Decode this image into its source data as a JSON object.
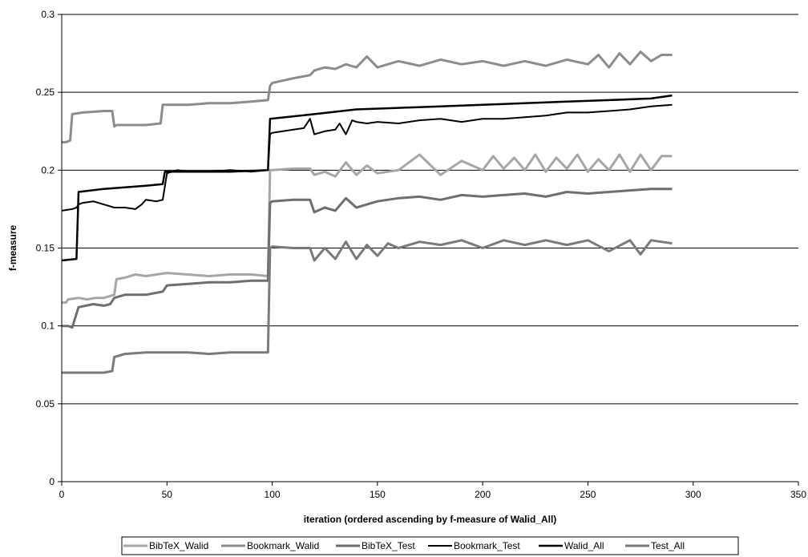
{
  "chart_data": {
    "type": "line",
    "title": "",
    "xlabel": "iteration (ordered ascending by f-measure of Walid_All)",
    "ylabel": "f-measure",
    "xlim": [
      0,
      350
    ],
    "ylim": [
      0,
      0.3
    ],
    "x_ticks": [
      "0",
      "50",
      "100",
      "150",
      "200",
      "250",
      "300",
      "350"
    ],
    "y_ticks": [
      "0",
      "0.05",
      "0.1",
      "0.15",
      "0.2",
      "0.25",
      "0.3"
    ],
    "grid": "horizontal",
    "legend_position": "bottom",
    "series": [
      {
        "name": "BibTeX_Walid",
        "color": "#a6a6a6",
        "width": 3,
        "x": [
          0,
          2,
          3,
          8,
          12,
          16,
          20,
          25,
          26,
          30,
          35,
          40,
          45,
          50,
          60,
          70,
          80,
          90,
          98,
          99,
          100,
          110,
          118,
          120,
          125,
          130,
          135,
          140,
          145,
          150,
          160,
          170,
          180,
          190,
          200,
          205,
          210,
          215,
          220,
          225,
          230,
          235,
          240,
          245,
          250,
          255,
          260,
          265,
          270,
          275,
          280,
          285,
          290
        ],
        "y": [
          0.115,
          0.115,
          0.117,
          0.118,
          0.117,
          0.118,
          0.118,
          0.12,
          0.13,
          0.131,
          0.133,
          0.132,
          0.133,
          0.134,
          0.133,
          0.132,
          0.133,
          0.133,
          0.132,
          0.2,
          0.2,
          0.201,
          0.201,
          0.197,
          0.199,
          0.196,
          0.205,
          0.197,
          0.203,
          0.198,
          0.2,
          0.21,
          0.197,
          0.206,
          0.2,
          0.209,
          0.201,
          0.208,
          0.2,
          0.21,
          0.199,
          0.208,
          0.201,
          0.21,
          0.199,
          0.207,
          0.2,
          0.21,
          0.199,
          0.21,
          0.2,
          0.209,
          0.209
        ]
      },
      {
        "name": "Bookmark_Walid",
        "color": "#8c8c8c",
        "width": 3,
        "x": [
          0,
          2,
          4,
          5,
          10,
          20,
          24,
          25,
          26,
          30,
          40,
          47,
          48,
          50,
          60,
          70,
          80,
          90,
          98,
          99,
          100,
          110,
          118,
          120,
          125,
          130,
          135,
          140,
          145,
          150,
          160,
          170,
          180,
          190,
          200,
          210,
          220,
          230,
          240,
          250,
          255,
          260,
          265,
          270,
          275,
          280,
          285,
          290
        ],
        "y": [
          0.218,
          0.218,
          0.219,
          0.236,
          0.237,
          0.238,
          0.238,
          0.228,
          0.229,
          0.229,
          0.229,
          0.23,
          0.242,
          0.242,
          0.242,
          0.243,
          0.243,
          0.244,
          0.245,
          0.254,
          0.256,
          0.259,
          0.261,
          0.264,
          0.266,
          0.265,
          0.268,
          0.266,
          0.273,
          0.266,
          0.27,
          0.267,
          0.271,
          0.268,
          0.27,
          0.267,
          0.27,
          0.267,
          0.271,
          0.268,
          0.274,
          0.266,
          0.275,
          0.268,
          0.276,
          0.27,
          0.274,
          0.274
        ]
      },
      {
        "name": "BibTeX_Test",
        "color": "#6e6e6e",
        "width": 3,
        "x": [
          0,
          3,
          5,
          8,
          15,
          20,
          23,
          25,
          30,
          40,
          48,
          50,
          60,
          70,
          80,
          90,
          98,
          99,
          100,
          110,
          118,
          120,
          125,
          130,
          135,
          140,
          145,
          150,
          160,
          170,
          180,
          190,
          200,
          210,
          220,
          230,
          240,
          250,
          260,
          270,
          280,
          290
        ],
        "y": [
          0.1,
          0.1,
          0.099,
          0.112,
          0.114,
          0.113,
          0.114,
          0.118,
          0.12,
          0.12,
          0.122,
          0.126,
          0.127,
          0.128,
          0.128,
          0.129,
          0.129,
          0.179,
          0.18,
          0.181,
          0.181,
          0.173,
          0.176,
          0.174,
          0.182,
          0.176,
          0.178,
          0.18,
          0.182,
          0.183,
          0.181,
          0.184,
          0.183,
          0.184,
          0.185,
          0.183,
          0.186,
          0.185,
          0.186,
          0.187,
          0.188,
          0.188
        ]
      },
      {
        "name": "Bookmark_Test",
        "color": "#000000",
        "width": 2,
        "x": [
          0,
          5,
          7,
          8,
          10,
          15,
          20,
          25,
          30,
          35,
          38,
          40,
          45,
          48,
          50,
          55,
          60,
          70,
          80,
          90,
          98,
          99,
          100,
          105,
          110,
          115,
          118,
          120,
          125,
          130,
          132,
          135,
          138,
          140,
          145,
          150,
          160,
          170,
          180,
          190,
          200,
          210,
          220,
          230,
          240,
          250,
          260,
          270,
          280,
          290
        ],
        "y": [
          0.174,
          0.175,
          0.176,
          0.178,
          0.179,
          0.18,
          0.178,
          0.176,
          0.176,
          0.175,
          0.178,
          0.181,
          0.18,
          0.181,
          0.198,
          0.2,
          0.199,
          0.199,
          0.2,
          0.199,
          0.2,
          0.223,
          0.224,
          0.225,
          0.226,
          0.227,
          0.233,
          0.223,
          0.225,
          0.226,
          0.23,
          0.223,
          0.232,
          0.231,
          0.23,
          0.231,
          0.23,
          0.232,
          0.233,
          0.231,
          0.233,
          0.233,
          0.234,
          0.235,
          0.237,
          0.237,
          0.238,
          0.239,
          0.241,
          0.242
        ]
      },
      {
        "name": "Walid_All",
        "color": "#000000",
        "width": 2.5,
        "x": [
          0,
          7,
          8,
          20,
          40,
          48,
          49,
          60,
          80,
          98,
          99,
          120,
          140,
          160,
          180,
          200,
          220,
          240,
          260,
          280,
          290
        ],
        "y": [
          0.142,
          0.143,
          0.186,
          0.188,
          0.19,
          0.191,
          0.199,
          0.199,
          0.199,
          0.2,
          0.233,
          0.236,
          0.239,
          0.24,
          0.241,
          0.242,
          0.243,
          0.244,
          0.245,
          0.246,
          0.248
        ]
      },
      {
        "name": "Test_All",
        "color": "#7a7a7a",
        "width": 3,
        "x": [
          0,
          10,
          20,
          24,
          25,
          30,
          40,
          50,
          60,
          70,
          80,
          90,
          98,
          99,
          100,
          110,
          118,
          120,
          125,
          130,
          135,
          140,
          145,
          150,
          155,
          160,
          170,
          180,
          190,
          200,
          210,
          220,
          230,
          240,
          250,
          260,
          270,
          275,
          280,
          290
        ],
        "y": [
          0.07,
          0.07,
          0.07,
          0.071,
          0.08,
          0.082,
          0.083,
          0.083,
          0.083,
          0.082,
          0.083,
          0.083,
          0.083,
          0.15,
          0.151,
          0.15,
          0.15,
          0.142,
          0.15,
          0.143,
          0.154,
          0.143,
          0.152,
          0.145,
          0.153,
          0.15,
          0.154,
          0.152,
          0.155,
          0.15,
          0.155,
          0.152,
          0.155,
          0.152,
          0.155,
          0.148,
          0.155,
          0.146,
          0.155,
          0.153
        ]
      }
    ]
  }
}
